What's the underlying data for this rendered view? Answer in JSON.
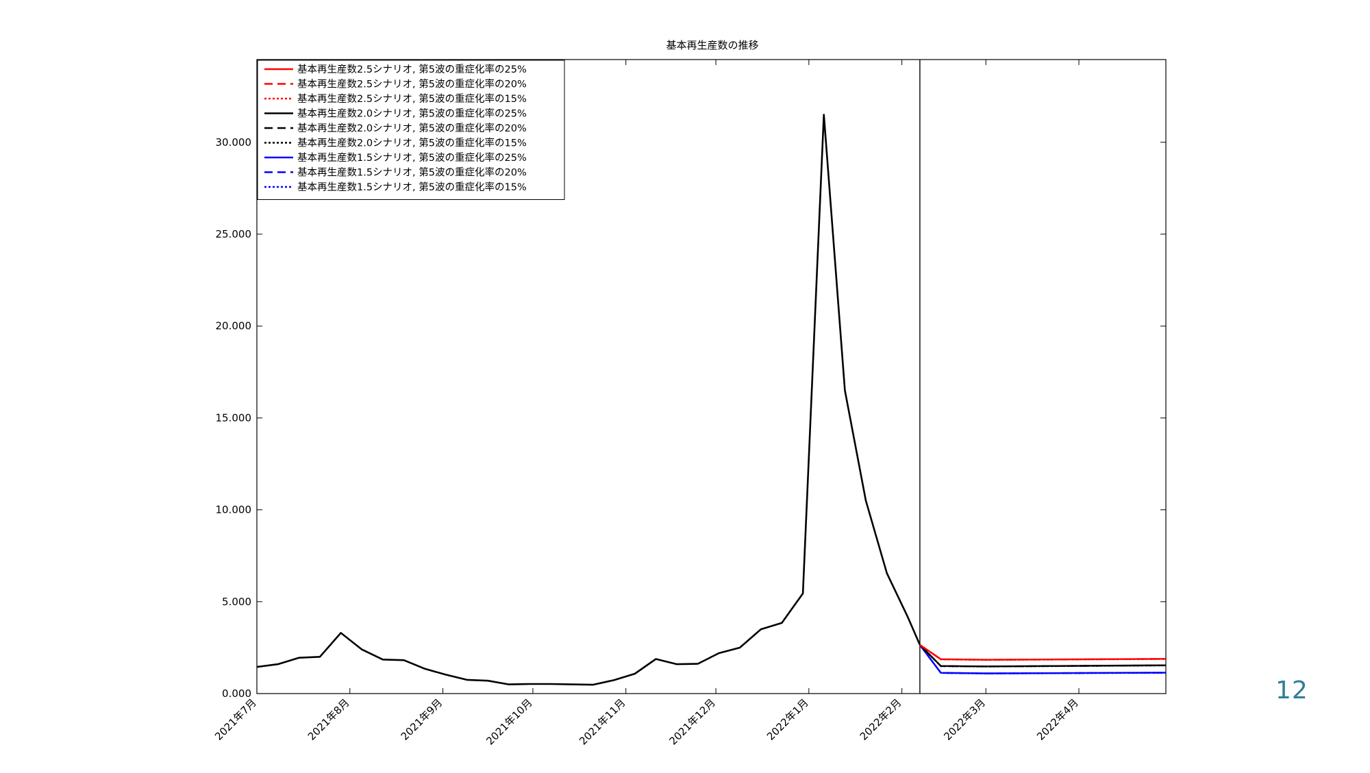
{
  "slide": {
    "page_number": "12"
  },
  "chart_data": {
    "type": "line",
    "title": "基本再生産数の推移",
    "xlabel": "",
    "ylabel": "",
    "ylim": [
      0,
      34500
    ],
    "xlim": [
      "2021-07-01",
      "2022-04-30"
    ],
    "y_ticks": [
      {
        "value": 0,
        "label": "0.000"
      },
      {
        "value": 5000,
        "label": "5.000"
      },
      {
        "value": 10000,
        "label": "10.000"
      },
      {
        "value": 15000,
        "label": "15.000"
      },
      {
        "value": 20000,
        "label": "20.000"
      },
      {
        "value": 25000,
        "label": "25.000"
      },
      {
        "value": 30000,
        "label": "30.000"
      }
    ],
    "x_ticks": [
      {
        "date": "2021-07-01",
        "label": "2021年7月"
      },
      {
        "date": "2021-08-01",
        "label": "2021年8月"
      },
      {
        "date": "2021-09-01",
        "label": "2021年9月"
      },
      {
        "date": "2021-10-01",
        "label": "2021年10月"
      },
      {
        "date": "2021-11-01",
        "label": "2021年11月"
      },
      {
        "date": "2021-12-01",
        "label": "2021年12月"
      },
      {
        "date": "2022-01-01",
        "label": "2022年1月"
      },
      {
        "date": "2022-02-01",
        "label": "2022年2月"
      },
      {
        "date": "2022-03-01",
        "label": "2022年3月"
      },
      {
        "date": "2022-04-01",
        "label": "2022年4月"
      }
    ],
    "vertical_line_date": "2022-02-07",
    "legend_position": "top-left",
    "grid": false,
    "history": {
      "x": [
        "2021-07-01",
        "2021-07-08",
        "2021-07-15",
        "2021-07-22",
        "2021-07-29",
        "2021-08-05",
        "2021-08-12",
        "2021-08-19",
        "2021-08-26",
        "2021-09-02",
        "2021-09-09",
        "2021-09-16",
        "2021-09-23",
        "2021-09-30",
        "2021-10-07",
        "2021-10-14",
        "2021-10-21",
        "2021-10-28",
        "2021-11-04",
        "2021-11-11",
        "2021-11-18",
        "2021-11-25",
        "2021-12-02",
        "2021-12-09",
        "2021-12-16",
        "2021-12-23",
        "2021-12-30",
        "2022-01-06",
        "2022-01-13",
        "2022-01-20",
        "2022-01-27",
        "2022-02-03",
        "2022-02-07"
      ],
      "y": [
        1450,
        1600,
        1950,
        2000,
        3300,
        2400,
        1850,
        1820,
        1350,
        1030,
        750,
        700,
        500,
        520,
        520,
        500,
        480,
        730,
        1080,
        1880,
        1600,
        1620,
        2200,
        2500,
        3500,
        3850,
        5450,
        31500,
        16500,
        10500,
        6550,
        4150,
        2650
      ]
    },
    "series": [
      {
        "name": "基本再生産数2.5シナリオ, 第5波の重症化率の25%",
        "color": "#ff0000",
        "dash": "solid",
        "x": [
          "2022-02-07",
          "2022-02-14",
          "2022-03-01",
          "2022-04-30"
        ],
        "y": [
          2650,
          1870,
          1840,
          1890
        ]
      },
      {
        "name": "基本再生産数2.5シナリオ, 第5波の重症化率の20%",
        "color": "#ff0000",
        "dash": "dashed",
        "x": [
          "2022-02-07",
          "2022-02-14",
          "2022-03-01",
          "2022-04-30"
        ],
        "y": [
          2650,
          1865,
          1835,
          1885
        ]
      },
      {
        "name": "基本再生産数2.5シナリオ, 第5波の重症化率の15%",
        "color": "#ff0000",
        "dash": "dotted",
        "x": [
          "2022-02-07",
          "2022-02-14",
          "2022-03-01",
          "2022-04-30"
        ],
        "y": [
          2650,
          1860,
          1830,
          1880
        ]
      },
      {
        "name": "基本再生産数2.0シナリオ, 第5波の重症化率の25%",
        "color": "#000000",
        "dash": "solid",
        "x": [
          "2022-02-07",
          "2022-02-14",
          "2022-03-01",
          "2022-04-30"
        ],
        "y": [
          2650,
          1500,
          1480,
          1540
        ]
      },
      {
        "name": "基本再生産数2.0シナリオ, 第5波の重症化率の20%",
        "color": "#000000",
        "dash": "dashed",
        "x": [
          "2022-02-07",
          "2022-02-14",
          "2022-03-01",
          "2022-04-30"
        ],
        "y": [
          2650,
          1495,
          1475,
          1535
        ]
      },
      {
        "name": "基本再生産数2.0シナリオ, 第5波の重症化率の15%",
        "color": "#000000",
        "dash": "dotted",
        "x": [
          "2022-02-07",
          "2022-02-14",
          "2022-03-01",
          "2022-04-30"
        ],
        "y": [
          2650,
          1490,
          1470,
          1530
        ]
      },
      {
        "name": "基本再生産数1.5シナリオ, 第5波の重症化率の25%",
        "color": "#0000ff",
        "dash": "solid",
        "x": [
          "2022-02-07",
          "2022-02-14",
          "2022-03-01",
          "2022-04-30"
        ],
        "y": [
          2650,
          1130,
          1100,
          1140
        ]
      },
      {
        "name": "基本再生産数1.5シナリオ, 第5波の重症化率の20%",
        "color": "#0000ff",
        "dash": "dashed",
        "x": [
          "2022-02-07",
          "2022-02-14",
          "2022-03-01",
          "2022-04-30"
        ],
        "y": [
          2650,
          1125,
          1095,
          1135
        ]
      },
      {
        "name": "基本再生産数1.5シナリオ, 第5波の重症化率の15%",
        "color": "#0000ff",
        "dash": "dotted",
        "x": [
          "2022-02-07",
          "2022-02-14",
          "2022-03-01",
          "2022-04-30"
        ],
        "y": [
          2650,
          1120,
          1090,
          1130
        ]
      }
    ]
  }
}
